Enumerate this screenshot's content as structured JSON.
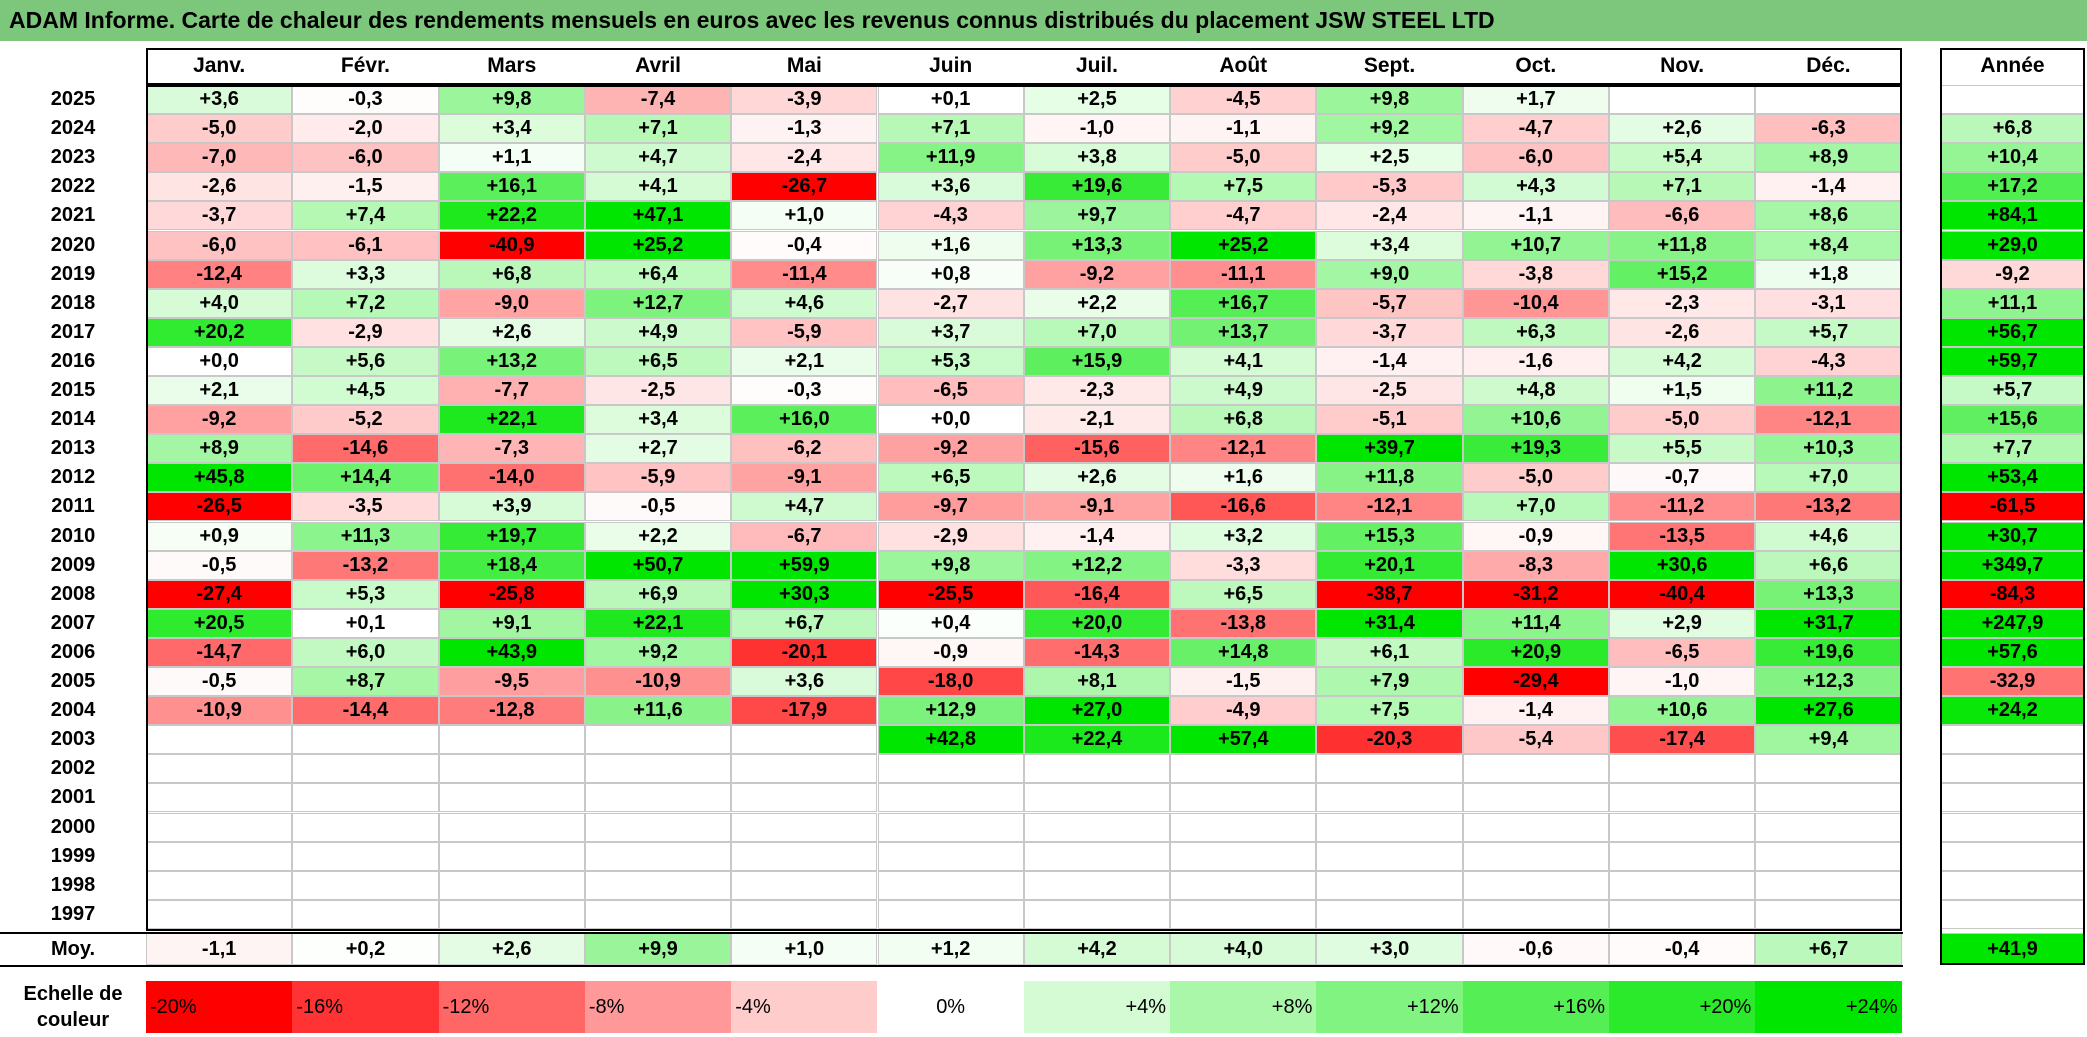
{
  "title": "ADAM Informe. Carte de chaleur des rendements mensuels en euros avec les revenus connus distribués du placement JSW STEEL LTD",
  "months": [
    "Janv.",
    "Févr.",
    "Mars",
    "Avril",
    "Mai",
    "Juin",
    "Juil.",
    "Août",
    "Sept.",
    "Oct.",
    "Nov.",
    "Déc."
  ],
  "year_header": "Année",
  "avg_label": "Moy.",
  "scale_label": "Echelle de couleur",
  "colors": {
    "title_bar": "#7dc77d",
    "negative": "#ff0000",
    "positive": "#00e600",
    "neutral": "#ffffff"
  },
  "chart_data": {
    "type": "heatmap",
    "title": "ADAM Informe. Carte de chaleur des rendements mensuels en euros avec les revenus connus distribués du placement JSW STEEL LTD",
    "x_categories": [
      "Janv.",
      "Févr.",
      "Mars",
      "Avril",
      "Mai",
      "Juin",
      "Juil.",
      "Août",
      "Sept.",
      "Oct.",
      "Nov.",
      "Déc.",
      "Année"
    ],
    "rows": [
      {
        "year": "2025",
        "values": [
          "+3,6",
          "-0,3",
          "+9,8",
          "-7,4",
          "-3,9",
          "+0,1",
          "+2,5",
          "-4,5",
          "+9,8",
          "+1,7",
          "",
          ""
        ],
        "annual": ""
      },
      {
        "year": "2024",
        "values": [
          "-5,0",
          "-2,0",
          "+3,4",
          "+7,1",
          "-1,3",
          "+7,1",
          "-1,0",
          "-1,1",
          "+9,2",
          "-4,7",
          "+2,6",
          "-6,3"
        ],
        "annual": "+6,8"
      },
      {
        "year": "2023",
        "values": [
          "-7,0",
          "-6,0",
          "+1,1",
          "+4,7",
          "-2,4",
          "+11,9",
          "+3,8",
          "-5,0",
          "+2,5",
          "-6,0",
          "+5,4",
          "+8,9"
        ],
        "annual": "+10,4"
      },
      {
        "year": "2022",
        "values": [
          "-2,6",
          "-1,5",
          "+16,1",
          "+4,1",
          "-26,7",
          "+3,6",
          "+19,6",
          "+7,5",
          "-5,3",
          "+4,3",
          "+7,1",
          "-1,4"
        ],
        "annual": "+17,2"
      },
      {
        "year": "2021",
        "values": [
          "-3,7",
          "+7,4",
          "+22,2",
          "+47,1",
          "+1,0",
          "-4,3",
          "+9,7",
          "-4,7",
          "-2,4",
          "-1,1",
          "-6,6",
          "+8,6"
        ],
        "annual": "+84,1"
      },
      {
        "year": "2020",
        "values": [
          "-6,0",
          "-6,1",
          "-40,9",
          "+25,2",
          "-0,4",
          "+1,6",
          "+13,3",
          "+25,2",
          "+3,4",
          "+10,7",
          "+11,8",
          "+8,4"
        ],
        "annual": "+29,0"
      },
      {
        "year": "2019",
        "values": [
          "-12,4",
          "+3,3",
          "+6,8",
          "+6,4",
          "-11,4",
          "+0,8",
          "-9,2",
          "-11,1",
          "+9,0",
          "-3,8",
          "+15,2",
          "+1,8"
        ],
        "annual": "-9,2"
      },
      {
        "year": "2018",
        "values": [
          "+4,0",
          "+7,2",
          "-9,0",
          "+12,7",
          "+4,6",
          "-2,7",
          "+2,2",
          "+16,7",
          "-5,7",
          "-10,4",
          "-2,3",
          "-3,1"
        ],
        "annual": "+11,1"
      },
      {
        "year": "2017",
        "values": [
          "+20,2",
          "-2,9",
          "+2,6",
          "+4,9",
          "-5,9",
          "+3,7",
          "+7,0",
          "+13,7",
          "-3,7",
          "+6,3",
          "-2,6",
          "+5,7"
        ],
        "annual": "+56,7"
      },
      {
        "year": "2016",
        "values": [
          "+0,0",
          "+5,6",
          "+13,2",
          "+6,5",
          "+2,1",
          "+5,3",
          "+15,9",
          "+4,1",
          "-1,4",
          "-1,6",
          "+4,2",
          "-4,3"
        ],
        "annual": "+59,7"
      },
      {
        "year": "2015",
        "values": [
          "+2,1",
          "+4,5",
          "-7,7",
          "-2,5",
          "-0,3",
          "-6,5",
          "-2,3",
          "+4,9",
          "-2,5",
          "+4,8",
          "+1,5",
          "+11,2"
        ],
        "annual": "+5,7"
      },
      {
        "year": "2014",
        "values": [
          "-9,2",
          "-5,2",
          "+22,1",
          "+3,4",
          "+16,0",
          "+0,0",
          "-2,1",
          "+6,8",
          "-5,1",
          "+10,6",
          "-5,0",
          "-12,1"
        ],
        "annual": "+15,6"
      },
      {
        "year": "2013",
        "values": [
          "+8,9",
          "-14,6",
          "-7,3",
          "+2,7",
          "-6,2",
          "-9,2",
          "-15,6",
          "-12,1",
          "+39,7",
          "+19,3",
          "+5,5",
          "+10,3"
        ],
        "annual": "+7,7"
      },
      {
        "year": "2012",
        "values": [
          "+45,8",
          "+14,4",
          "-14,0",
          "-5,9",
          "-9,1",
          "+6,5",
          "+2,6",
          "+1,6",
          "+11,8",
          "-5,0",
          "-0,7",
          "+7,0"
        ],
        "annual": "+53,4"
      },
      {
        "year": "2011",
        "values": [
          "-26,5",
          "-3,5",
          "+3,9",
          "-0,5",
          "+4,7",
          "-9,7",
          "-9,1",
          "-16,6",
          "-12,1",
          "+7,0",
          "-11,2",
          "-13,2"
        ],
        "annual": "-61,5"
      },
      {
        "year": "2010",
        "values": [
          "+0,9",
          "+11,3",
          "+19,7",
          "+2,2",
          "-6,7",
          "-2,9",
          "-1,4",
          "+3,2",
          "+15,3",
          "-0,9",
          "-13,5",
          "+4,6"
        ],
        "annual": "+30,7"
      },
      {
        "year": "2009",
        "values": [
          "-0,5",
          "-13,2",
          "+18,4",
          "+50,7",
          "+59,9",
          "+9,8",
          "+12,2",
          "-3,3",
          "+20,1",
          "-8,3",
          "+30,6",
          "+6,6"
        ],
        "annual": "+349,7"
      },
      {
        "year": "2008",
        "values": [
          "-27,4",
          "+5,3",
          "-25,8",
          "+6,9",
          "+30,3",
          "-25,5",
          "-16,4",
          "+6,5",
          "-38,7",
          "-31,2",
          "-40,4",
          "+13,3"
        ],
        "annual": "-84,3"
      },
      {
        "year": "2007",
        "values": [
          "+20,5",
          "+0,1",
          "+9,1",
          "+22,1",
          "+6,7",
          "+0,4",
          "+20,0",
          "-13,8",
          "+31,4",
          "+11,4",
          "+2,9",
          "+31,7"
        ],
        "annual": "+247,9"
      },
      {
        "year": "2006",
        "values": [
          "-14,7",
          "+6,0",
          "+43,9",
          "+9,2",
          "-20,1",
          "-0,9",
          "-14,3",
          "+14,8",
          "+6,1",
          "+20,9",
          "-6,5",
          "+19,6"
        ],
        "annual": "+57,6"
      },
      {
        "year": "2005",
        "values": [
          "-0,5",
          "+8,7",
          "-9,5",
          "-10,9",
          "+3,6",
          "-18,0",
          "+8,1",
          "-1,5",
          "+7,9",
          "-29,4",
          "-1,0",
          "+12,3"
        ],
        "annual": "-32,9"
      },
      {
        "year": "2004",
        "values": [
          "-10,9",
          "-14,4",
          "-12,8",
          "+11,6",
          "-17,9",
          "+12,9",
          "+27,0",
          "-4,9",
          "+7,5",
          "-1,4",
          "+10,6",
          "+27,6"
        ],
        "annual": "+24,2"
      },
      {
        "year": "2003",
        "values": [
          "",
          "",
          "",
          "",
          "",
          "+42,8",
          "+22,4",
          "+57,4",
          "-20,3",
          "-5,4",
          "-17,4",
          "+9,4"
        ],
        "annual": ""
      },
      {
        "year": "2002",
        "values": [
          "",
          "",
          "",
          "",
          "",
          "",
          "",
          "",
          "",
          "",
          "",
          ""
        ],
        "annual": ""
      },
      {
        "year": "2001",
        "values": [
          "",
          "",
          "",
          "",
          "",
          "",
          "",
          "",
          "",
          "",
          "",
          ""
        ],
        "annual": ""
      },
      {
        "year": "2000",
        "values": [
          "",
          "",
          "",
          "",
          "",
          "",
          "",
          "",
          "",
          "",
          "",
          ""
        ],
        "annual": ""
      },
      {
        "year": "1999",
        "values": [
          "",
          "",
          "",
          "",
          "",
          "",
          "",
          "",
          "",
          "",
          "",
          ""
        ],
        "annual": ""
      },
      {
        "year": "1998",
        "values": [
          "",
          "",
          "",
          "",
          "",
          "",
          "",
          "",
          "",
          "",
          "",
          ""
        ],
        "annual": ""
      },
      {
        "year": "1997",
        "values": [
          "",
          "",
          "",
          "",
          "",
          "",
          "",
          "",
          "",
          "",
          "",
          ""
        ],
        "annual": ""
      }
    ],
    "averages": [
      "-1,1",
      "+0,2",
      "+2,6",
      "+9,9",
      "+1,0",
      "+1,2",
      "+4,2",
      "+4,0",
      "+3,0",
      "-0,6",
      "-0,4",
      "+6,7"
    ],
    "average_annual": "+41,9",
    "color_scale": [
      "-20%",
      "-16%",
      "-12%",
      "-8%",
      "-4%",
      "0%",
      "+4%",
      "+8%",
      "+12%",
      "+16%",
      "+20%",
      "+24%"
    ]
  }
}
